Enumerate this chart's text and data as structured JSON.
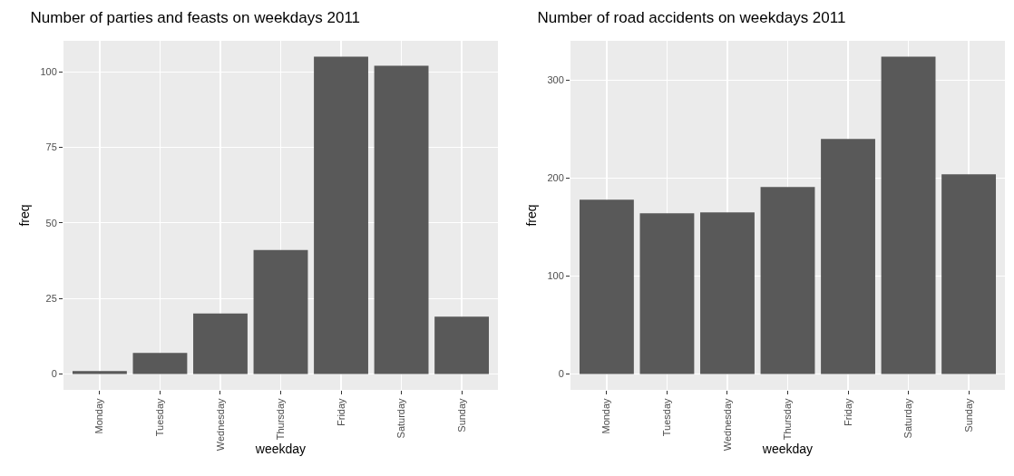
{
  "chart_data": [
    {
      "type": "bar",
      "title": "Number of parties and feasts on weekdays 2011",
      "xlabel": "weekday",
      "ylabel": "freq",
      "categories": [
        "Monday",
        "Tuesday",
        "Wednesday",
        "Thursday",
        "Friday",
        "Saturday",
        "Sunday"
      ],
      "values": [
        1,
        7,
        20,
        41,
        105,
        102,
        19
      ],
      "color": "#595959",
      "ylim": [
        -5.25,
        110.25
      ],
      "yticks": [
        0,
        25,
        50,
        75,
        100
      ],
      "grid": true
    },
    {
      "type": "bar",
      "title": "Number of road accidents on weekdays 2011",
      "xlabel": "weekday",
      "ylabel": "freq",
      "categories": [
        "Monday",
        "Tuesday",
        "Wednesday",
        "Thursday",
        "Friday",
        "Saturday",
        "Sunday"
      ],
      "values": [
        178,
        164,
        165,
        191,
        240,
        324,
        204
      ],
      "color": "#595959",
      "ylim": [
        -16.2,
        340.2
      ],
      "yticks": [
        0,
        100,
        200,
        300
      ],
      "grid": true
    }
  ]
}
